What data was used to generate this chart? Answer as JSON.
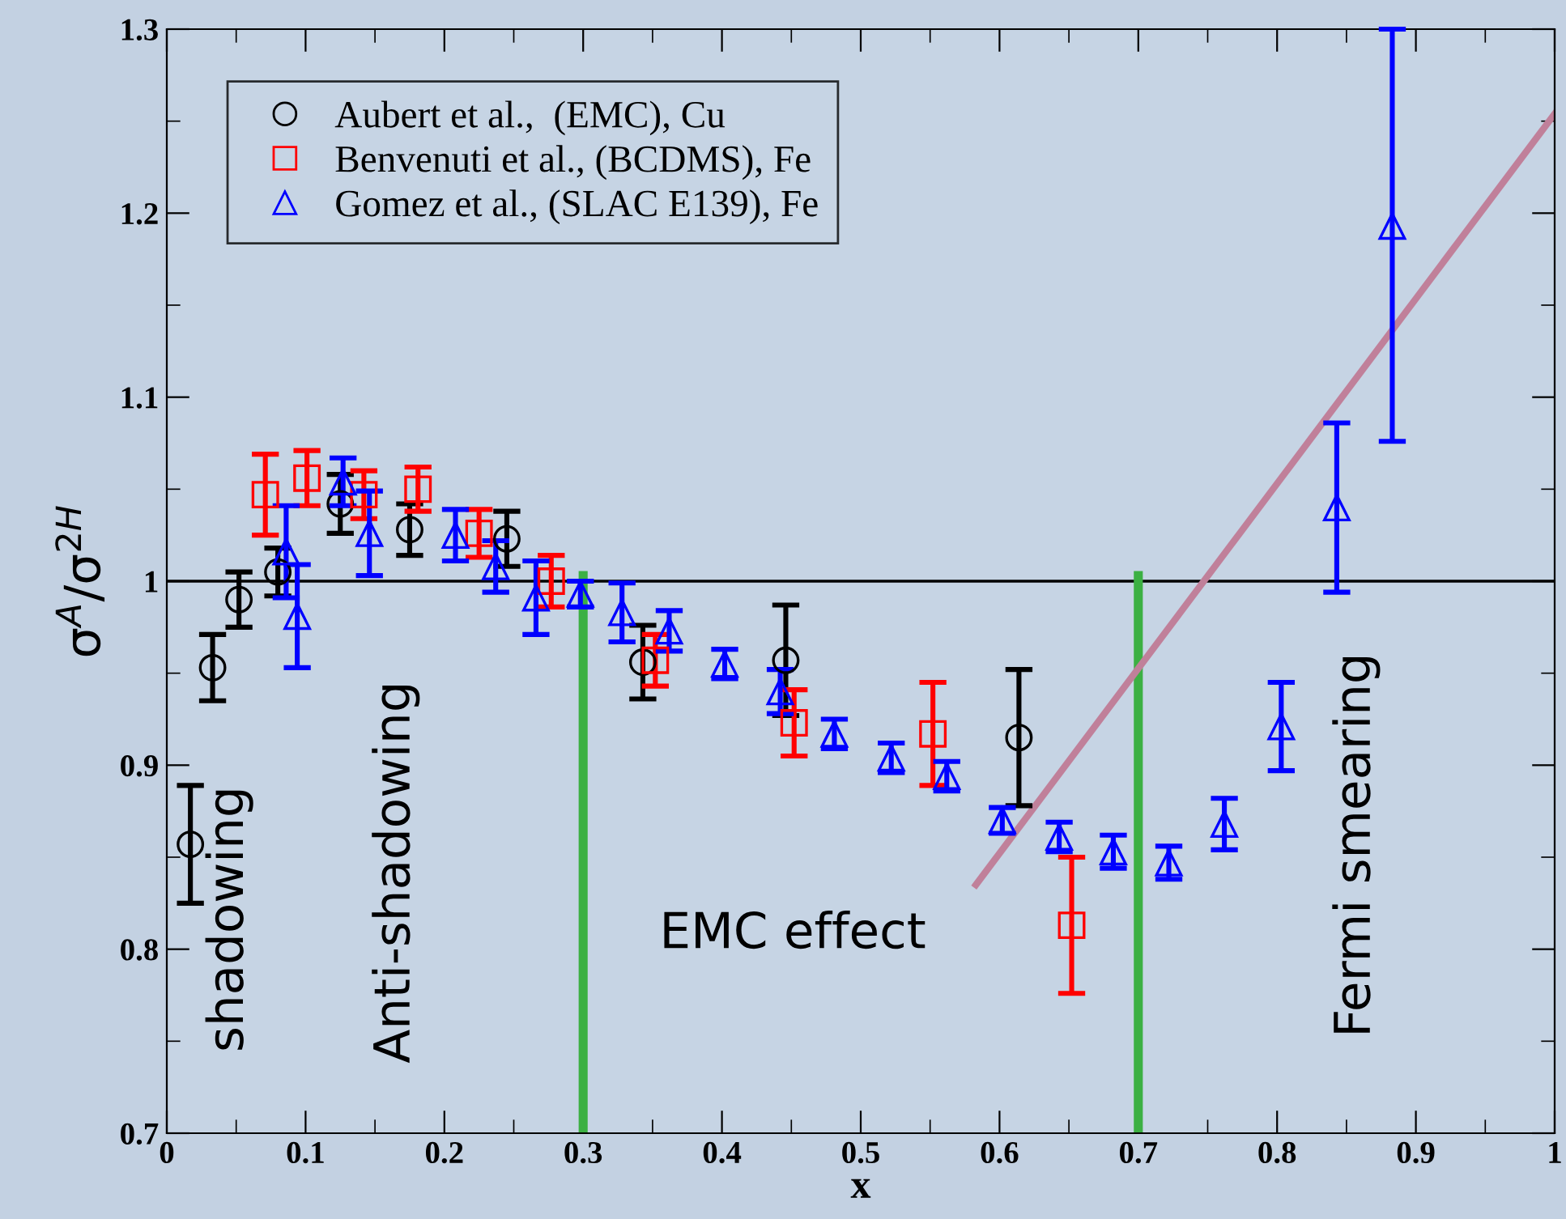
{
  "chart_data": {
    "type": "scatter",
    "xlabel": "x",
    "ylabel": "σ$^{A}$/σ$^{2H}$",
    "xlim": [
      0,
      1
    ],
    "ylim": [
      0.7,
      1.3
    ],
    "xticks": [
      0,
      0.1,
      0.2,
      0.3,
      0.4,
      0.5,
      0.6,
      0.7,
      0.8,
      0.9,
      1
    ],
    "yticks": [
      0.7,
      0.8,
      0.9,
      1,
      1.1,
      1.2,
      1.3
    ],
    "grid": false,
    "legend": "top left",
    "series": [
      {
        "name": "Aubert et al.,  (EMC), Cu",
        "color": "#000000",
        "marker": "circle",
        "x": [
          0.017,
          0.033,
          0.052,
          0.08,
          0.125,
          0.175,
          0.245,
          0.343,
          0.446,
          0.614
        ],
        "values": [
          0.857,
          0.953,
          0.99,
          1.005,
          1.042,
          1.028,
          1.023,
          0.956,
          0.957,
          0.915
        ],
        "errors": [
          0.032,
          0.018,
          0.015,
          0.013,
          0.016,
          0.014,
          0.015,
          0.02,
          0.03,
          0.037
        ]
      },
      {
        "name": "Benvenuti et al., (BCDMS), Fe",
        "color": "#ff0000",
        "marker": "square",
        "x": [
          0.071,
          0.101,
          0.142,
          0.181,
          0.225,
          0.277,
          0.352,
          0.452,
          0.552,
          0.652
        ],
        "values": [
          1.047,
          1.056,
          1.047,
          1.05,
          1.026,
          1.0,
          0.957,
          0.923,
          0.917,
          0.813
        ],
        "errors": [
          0.022,
          0.015,
          0.013,
          0.012,
          0.013,
          0.014,
          0.014,
          0.018,
          0.028,
          0.037
        ]
      },
      {
        "name": "Gomez et al., (SLAC E139), Fe",
        "color": "#0000ff",
        "marker": "triangle",
        "x": [
          0.086,
          0.094,
          0.127,
          0.146,
          0.208,
          0.237,
          0.266,
          0.298,
          0.328,
          0.362,
          0.402,
          0.442,
          0.481,
          0.522,
          0.562,
          0.602,
          0.643,
          0.682,
          0.722,
          0.762,
          0.803,
          0.843,
          0.883
        ],
        "values": [
          1.016,
          0.981,
          1.054,
          1.026,
          1.025,
          1.008,
          0.991,
          0.993,
          0.983,
          0.973,
          0.955,
          0.94,
          0.917,
          0.904,
          0.894,
          0.87,
          0.861,
          0.853,
          0.847,
          0.868,
          0.921,
          1.04,
          1.193
        ],
        "errors": [
          0.025,
          0.028,
          0.013,
          0.023,
          0.014,
          0.014,
          0.02,
          0.007,
          0.016,
          0.011,
          0.008,
          0.012,
          0.008,
          0.008,
          0.008,
          0.007,
          0.008,
          0.009,
          0.009,
          0.014,
          0.024,
          0.046,
          [
            1.076,
            1.3
          ]
        ]
      },
      {
        "type": "line",
        "color": "#3cb043",
        "x": [
          0.3,
          0.3
        ],
        "values": [
          0.7,
          1.003
        ]
      },
      {
        "type": "line",
        "color": "#3cb043",
        "x": [
          0.7,
          0.7
        ],
        "values": [
          0.7,
          1.003
        ]
      },
      {
        "type": "line",
        "color": "#c0809a",
        "x": [
          0.583,
          1.0
        ],
        "values": [
          0.835,
          1.254
        ]
      }
    ],
    "ref_lines": [
      {
        "axis": "y",
        "value": 1,
        "color": "#000000"
      }
    ],
    "annotations": [
      "shadowing",
      "Anti-shadowing",
      "EMC effect",
      "Fermi smearing"
    ]
  }
}
